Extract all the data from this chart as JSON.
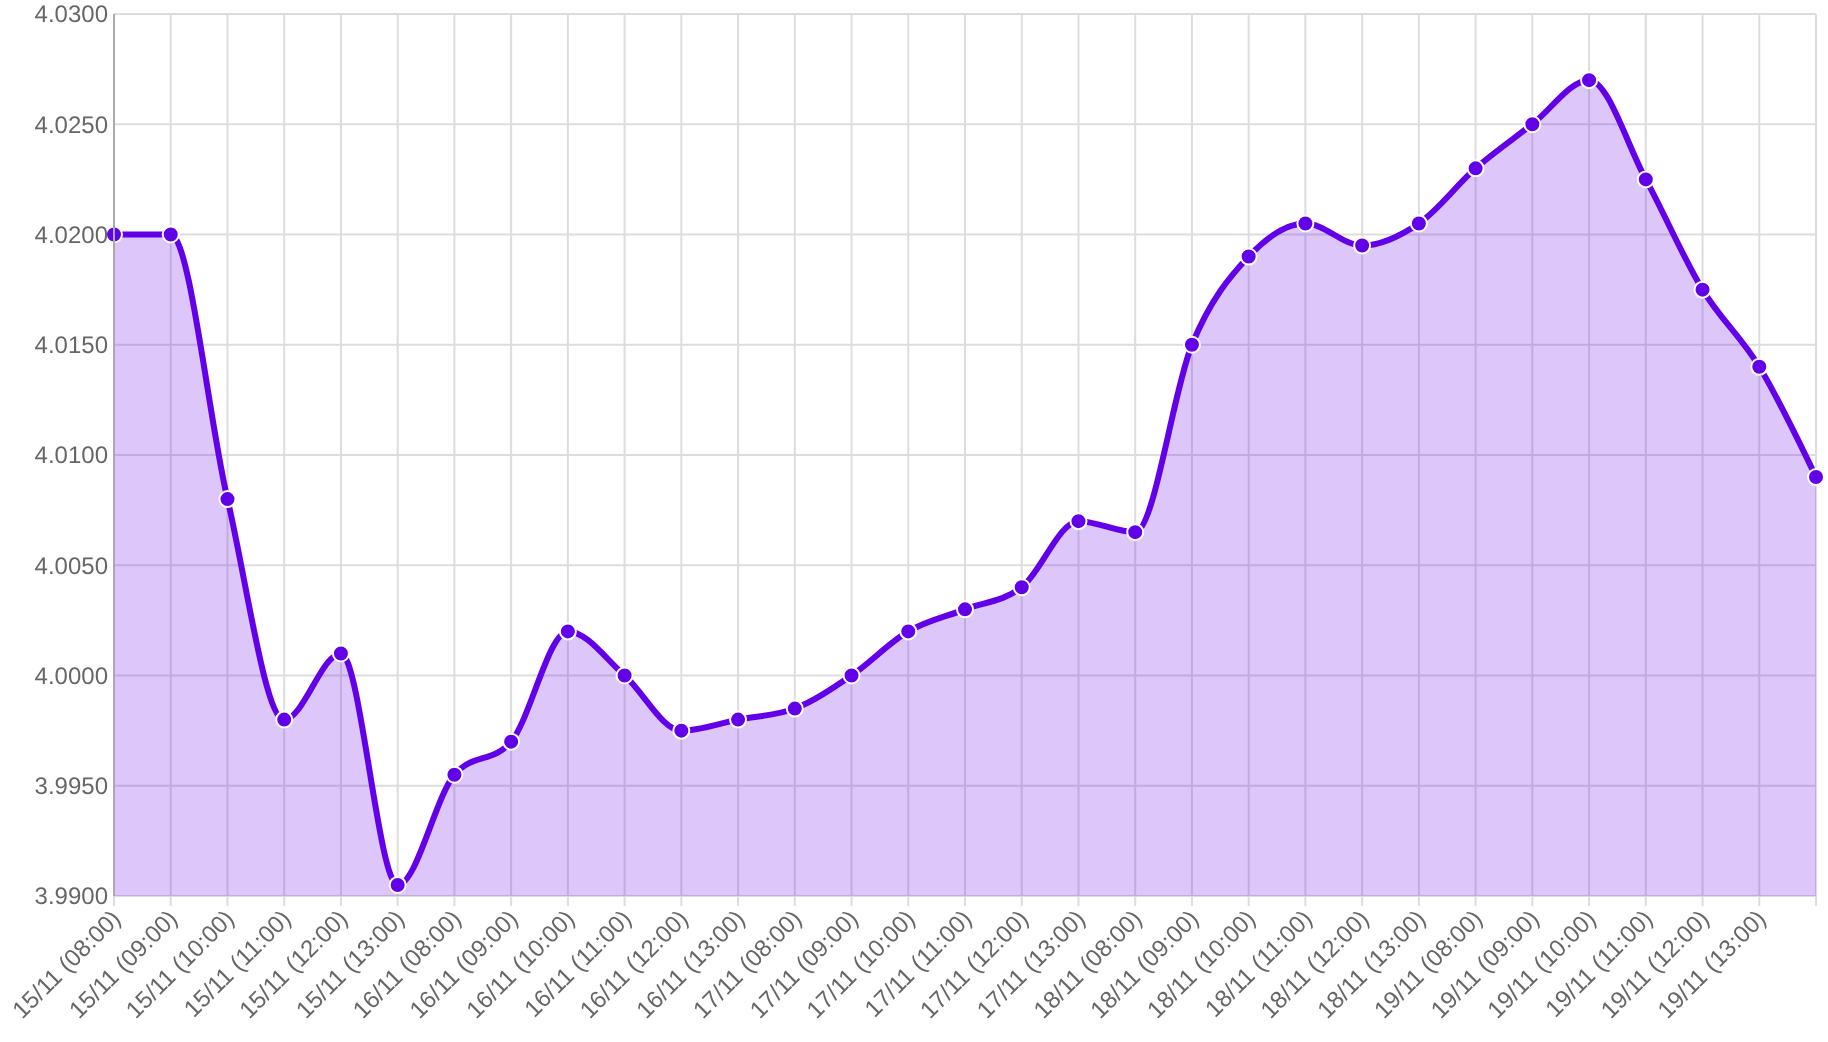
{
  "chart_data": {
    "type": "area",
    "categories": [
      "15/11 (08:00)",
      "15/11 (09:00)",
      "15/11 (10:00)",
      "15/11 (11:00)",
      "15/11 (12:00)",
      "15/11 (13:00)",
      "16/11 (08:00)",
      "16/11 (09:00)",
      "16/11 (10:00)",
      "16/11 (11:00)",
      "16/11 (12:00)",
      "16/11 (13:00)",
      "17/11 (08:00)",
      "17/11 (09:00)",
      "17/11 (10:00)",
      "17/11 (11:00)",
      "17/11 (12:00)",
      "17/11 (13:00)",
      "18/11 (08:00)",
      "18/11 (09:00)",
      "18/11 (10:00)",
      "18/11 (11:00)",
      "18/11 (12:00)",
      "18/11 (13:00)",
      "19/11 (08:00)",
      "19/11 (09:00)",
      "19/11 (10:00)",
      "19/11 (11:00)",
      "19/11 (12:00)",
      "19/11 (13:00)",
      null
    ],
    "series": [
      {
        "color": "#6200ea",
        "values": [
          4.02,
          4.02,
          4.008,
          3.998,
          4.001,
          3.9905,
          3.9955,
          3.997,
          4.002,
          4.0,
          3.9975,
          3.998,
          3.9985,
          4.0,
          4.002,
          4.003,
          4.004,
          4.007,
          4.0065,
          4.015,
          4.019,
          4.0205,
          4.0195,
          4.0205,
          4.023,
          4.025,
          4.027,
          4.0225,
          4.0175,
          4.014,
          4.009
        ]
      }
    ],
    "ylim": [
      3.99,
      4.03
    ],
    "yticks": [
      {
        "value": 3.99,
        "label": "3.9900"
      },
      {
        "value": 3.995,
        "label": "3.9950"
      },
      {
        "value": 4.0,
        "label": "4.0000"
      },
      {
        "value": 4.005,
        "label": "4.0050"
      },
      {
        "value": 4.01,
        "label": "4.0100"
      },
      {
        "value": 4.015,
        "label": "4.0150"
      },
      {
        "value": 4.02,
        "label": "4.0200"
      },
      {
        "value": 4.025,
        "label": "4.0250"
      },
      {
        "value": 4.03,
        "label": "4.0300"
      }
    ],
    "grid": true,
    "marker": "circle",
    "line_style": "solid"
  }
}
